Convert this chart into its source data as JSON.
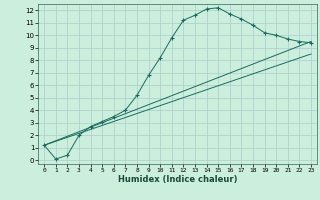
{
  "xlabel": "Humidex (Indice chaleur)",
  "bg_color": "#cceedd",
  "grid_color": "#aacccc",
  "line_color": "#1a6b5e",
  "xlim": [
    -0.5,
    23.5
  ],
  "ylim": [
    -0.3,
    12.5
  ],
  "xticks": [
    0,
    1,
    2,
    3,
    4,
    5,
    6,
    7,
    8,
    9,
    10,
    11,
    12,
    13,
    14,
    15,
    16,
    17,
    18,
    19,
    20,
    21,
    22,
    23
  ],
  "yticks": [
    0,
    1,
    2,
    3,
    4,
    5,
    6,
    7,
    8,
    9,
    10,
    11,
    12
  ],
  "curve1_x": [
    0,
    1,
    2,
    3,
    4,
    5,
    6,
    7,
    8,
    9,
    10,
    11,
    12,
    13,
    14,
    15,
    16,
    17,
    18,
    19,
    20,
    21,
    22,
    23
  ],
  "curve1_y": [
    1.2,
    0.1,
    0.4,
    2.0,
    2.7,
    3.1,
    3.5,
    4.0,
    5.2,
    6.8,
    8.2,
    9.8,
    11.2,
    11.6,
    12.1,
    12.2,
    11.7,
    11.3,
    10.8,
    10.2,
    10.0,
    9.7,
    9.5,
    9.4
  ],
  "line1_x": [
    0,
    23
  ],
  "line1_y": [
    1.2,
    9.5
  ],
  "line2_x": [
    0,
    23
  ],
  "line2_y": [
    1.2,
    8.5
  ]
}
